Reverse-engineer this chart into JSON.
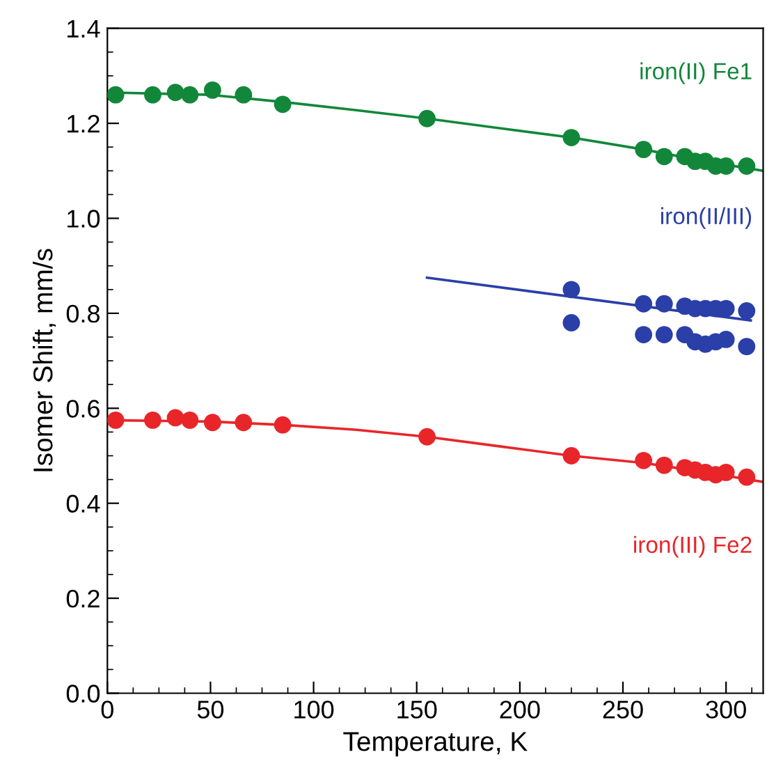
{
  "chart_data": {
    "type": "scatter",
    "xlabel": "Temperature, K",
    "ylabel": "Isomer Shift, mm/s",
    "xlim": [
      0,
      318
    ],
    "ylim": [
      0,
      1.4
    ],
    "xticks": [
      0,
      50,
      100,
      150,
      200,
      250,
      300
    ],
    "yticks": [
      {
        "value": 0,
        "label": "0.0"
      },
      0.2,
      0.4,
      0.6,
      0.8,
      {
        "value": 1.0,
        "label": "1.0"
      },
      1.2,
      1.4
    ],
    "grid": false,
    "legend": false,
    "series": [
      {
        "name": "iron(II) Fe1",
        "marker": "circle",
        "color": "#12873a",
        "x": [
          4,
          22,
          33,
          40,
          51,
          66,
          85,
          155,
          225,
          260,
          270,
          280,
          285,
          290,
          295,
          300,
          310
        ],
        "values": [
          1.26,
          1.26,
          1.265,
          1.26,
          1.27,
          1.26,
          1.24,
          1.21,
          1.17,
          1.145,
          1.13,
          1.13,
          1.12,
          1.12,
          1.11,
          1.11,
          1.11
        ]
      },
      {
        "name": "iron(III) Fe2",
        "marker": "circle",
        "color": "#e8262a",
        "x": [
          4,
          22,
          33,
          40,
          51,
          66,
          85,
          155,
          225,
          260,
          270,
          280,
          285,
          290,
          295,
          300,
          310
        ],
        "values": [
          0.575,
          0.575,
          0.58,
          0.575,
          0.57,
          0.57,
          0.565,
          0.54,
          0.5,
          0.49,
          0.48,
          0.475,
          0.47,
          0.465,
          0.46,
          0.465,
          0.455
        ]
      },
      {
        "name": "iron(II/III)",
        "marker": "circle",
        "color": "#2a3fa8",
        "x": [
          225,
          260,
          270,
          280,
          285,
          290,
          295,
          300,
          310
        ],
        "values": [
          0.85,
          0.82,
          0.82,
          0.815,
          0.81,
          0.81,
          0.81,
          0.81,
          0.805
        ]
      },
      {
        "marker": "circle",
        "color": "#2a3fa8",
        "x": [
          225,
          260,
          270,
          280,
          285,
          290,
          295,
          300,
          310
        ],
        "values": [
          0.78,
          0.755,
          0.755,
          0.755,
          0.74,
          0.735,
          0.74,
          0.745,
          0.73
        ]
      },
      {
        "type": "line",
        "marker": "none",
        "color": "#12873a",
        "x": [
          0,
          50,
          85,
          120,
          155,
          190,
          225,
          260,
          290,
          318
        ],
        "values": [
          1.265,
          1.26,
          1.245,
          1.228,
          1.21,
          1.19,
          1.17,
          1.145,
          1.12,
          1.1
        ]
      },
      {
        "type": "line",
        "marker": "none",
        "color": "#e8262a",
        "x": [
          0,
          50,
          85,
          120,
          155,
          190,
          225,
          260,
          290,
          318
        ],
        "values": [
          0.575,
          0.572,
          0.565,
          0.555,
          0.54,
          0.52,
          0.5,
          0.485,
          0.465,
          0.445
        ]
      },
      {
        "type": "line",
        "marker": "none",
        "color": "#2a3fa8",
        "x": [
          155,
          312
        ],
        "values": [
          0.875,
          0.785
        ]
      }
    ]
  }
}
